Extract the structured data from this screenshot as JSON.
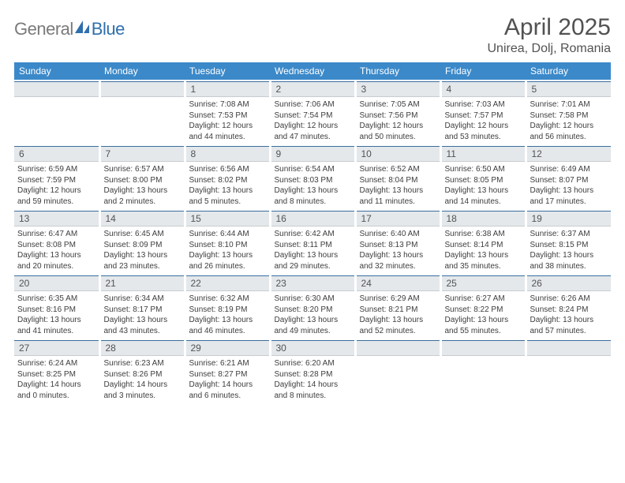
{
  "logo": {
    "word1": "General",
    "word2": "Blue"
  },
  "title": "April 2025",
  "location": "Unirea, Dolj, Romania",
  "header_color": "#3b89c9",
  "daynum_bg": "#e4e8eb",
  "columns": [
    "Sunday",
    "Monday",
    "Tuesday",
    "Wednesday",
    "Thursday",
    "Friday",
    "Saturday"
  ],
  "weeks": [
    [
      {
        "blank": true
      },
      {
        "blank": true
      },
      {
        "n": "1",
        "sunrise": "7:08 AM",
        "sunset": "7:53 PM",
        "daylight": "12 hours and 44 minutes."
      },
      {
        "n": "2",
        "sunrise": "7:06 AM",
        "sunset": "7:54 PM",
        "daylight": "12 hours and 47 minutes."
      },
      {
        "n": "3",
        "sunrise": "7:05 AM",
        "sunset": "7:56 PM",
        "daylight": "12 hours and 50 minutes."
      },
      {
        "n": "4",
        "sunrise": "7:03 AM",
        "sunset": "7:57 PM",
        "daylight": "12 hours and 53 minutes."
      },
      {
        "n": "5",
        "sunrise": "7:01 AM",
        "sunset": "7:58 PM",
        "daylight": "12 hours and 56 minutes."
      }
    ],
    [
      {
        "n": "6",
        "sunrise": "6:59 AM",
        "sunset": "7:59 PM",
        "daylight": "12 hours and 59 minutes."
      },
      {
        "n": "7",
        "sunrise": "6:57 AM",
        "sunset": "8:00 PM",
        "daylight": "13 hours and 2 minutes."
      },
      {
        "n": "8",
        "sunrise": "6:56 AM",
        "sunset": "8:02 PM",
        "daylight": "13 hours and 5 minutes."
      },
      {
        "n": "9",
        "sunrise": "6:54 AM",
        "sunset": "8:03 PM",
        "daylight": "13 hours and 8 minutes."
      },
      {
        "n": "10",
        "sunrise": "6:52 AM",
        "sunset": "8:04 PM",
        "daylight": "13 hours and 11 minutes."
      },
      {
        "n": "11",
        "sunrise": "6:50 AM",
        "sunset": "8:05 PM",
        "daylight": "13 hours and 14 minutes."
      },
      {
        "n": "12",
        "sunrise": "6:49 AM",
        "sunset": "8:07 PM",
        "daylight": "13 hours and 17 minutes."
      }
    ],
    [
      {
        "n": "13",
        "sunrise": "6:47 AM",
        "sunset": "8:08 PM",
        "daylight": "13 hours and 20 minutes."
      },
      {
        "n": "14",
        "sunrise": "6:45 AM",
        "sunset": "8:09 PM",
        "daylight": "13 hours and 23 minutes."
      },
      {
        "n": "15",
        "sunrise": "6:44 AM",
        "sunset": "8:10 PM",
        "daylight": "13 hours and 26 minutes."
      },
      {
        "n": "16",
        "sunrise": "6:42 AM",
        "sunset": "8:11 PM",
        "daylight": "13 hours and 29 minutes."
      },
      {
        "n": "17",
        "sunrise": "6:40 AM",
        "sunset": "8:13 PM",
        "daylight": "13 hours and 32 minutes."
      },
      {
        "n": "18",
        "sunrise": "6:38 AM",
        "sunset": "8:14 PM",
        "daylight": "13 hours and 35 minutes."
      },
      {
        "n": "19",
        "sunrise": "6:37 AM",
        "sunset": "8:15 PM",
        "daylight": "13 hours and 38 minutes."
      }
    ],
    [
      {
        "n": "20",
        "sunrise": "6:35 AM",
        "sunset": "8:16 PM",
        "daylight": "13 hours and 41 minutes."
      },
      {
        "n": "21",
        "sunrise": "6:34 AM",
        "sunset": "8:17 PM",
        "daylight": "13 hours and 43 minutes."
      },
      {
        "n": "22",
        "sunrise": "6:32 AM",
        "sunset": "8:19 PM",
        "daylight": "13 hours and 46 minutes."
      },
      {
        "n": "23",
        "sunrise": "6:30 AM",
        "sunset": "8:20 PM",
        "daylight": "13 hours and 49 minutes."
      },
      {
        "n": "24",
        "sunrise": "6:29 AM",
        "sunset": "8:21 PM",
        "daylight": "13 hours and 52 minutes."
      },
      {
        "n": "25",
        "sunrise": "6:27 AM",
        "sunset": "8:22 PM",
        "daylight": "13 hours and 55 minutes."
      },
      {
        "n": "26",
        "sunrise": "6:26 AM",
        "sunset": "8:24 PM",
        "daylight": "13 hours and 57 minutes."
      }
    ],
    [
      {
        "n": "27",
        "sunrise": "6:24 AM",
        "sunset": "8:25 PM",
        "daylight": "14 hours and 0 minutes."
      },
      {
        "n": "28",
        "sunrise": "6:23 AM",
        "sunset": "8:26 PM",
        "daylight": "14 hours and 3 minutes."
      },
      {
        "n": "29",
        "sunrise": "6:21 AM",
        "sunset": "8:27 PM",
        "daylight": "14 hours and 6 minutes."
      },
      {
        "n": "30",
        "sunrise": "6:20 AM",
        "sunset": "8:28 PM",
        "daylight": "14 hours and 8 minutes."
      },
      {
        "blank": true
      },
      {
        "blank": true
      },
      {
        "blank": true
      }
    ]
  ]
}
